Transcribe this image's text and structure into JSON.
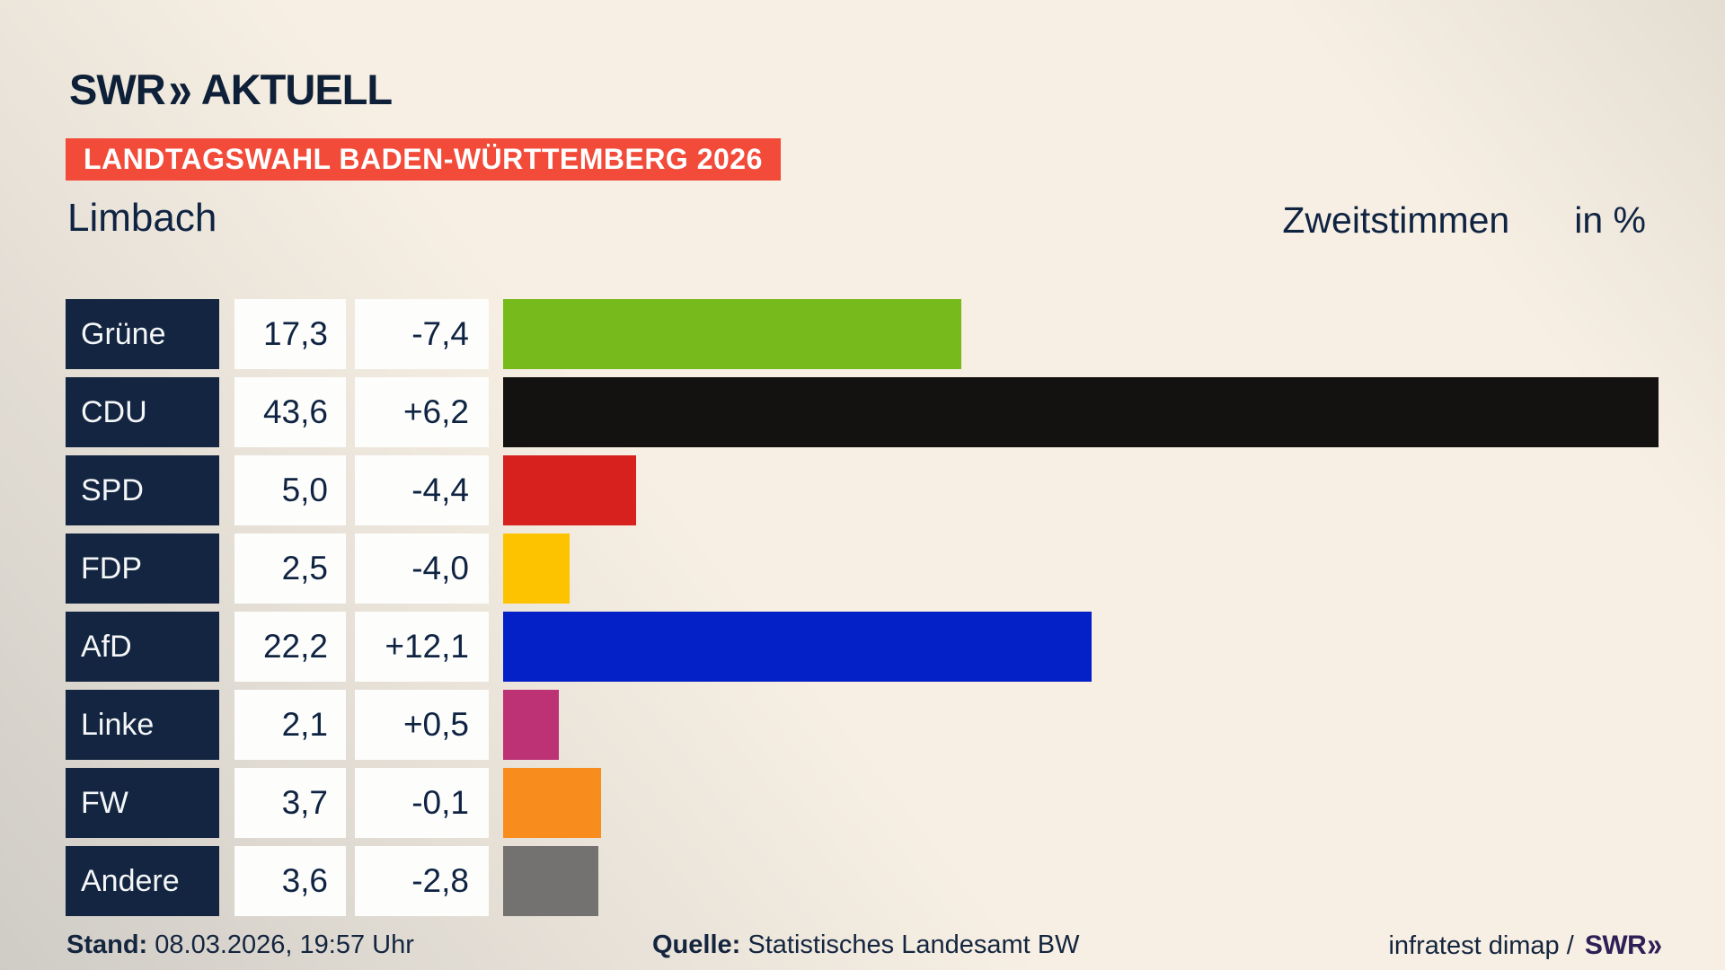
{
  "header": {
    "logo": {
      "brand": "SWR",
      "chevrons": "»",
      "suffix": "AKTUELL"
    },
    "banner": "LANDTAGSWAHL BADEN-WÜRTTEMBERG 2026",
    "region": "Limbach",
    "measure": "Zweitstimmen",
    "unit": "in %"
  },
  "chart_data": {
    "type": "bar",
    "orientation": "horizontal",
    "title": "Landtagswahl Baden-Württemberg 2026 — Limbach — Zweitstimmen in %",
    "categories": [
      "Grüne",
      "CDU",
      "SPD",
      "FDP",
      "AfD",
      "Linke",
      "FW",
      "Andere"
    ],
    "values": [
      17.3,
      43.6,
      5.0,
      2.5,
      22.2,
      2.1,
      3.7,
      3.6
    ],
    "changes": [
      -7.4,
      6.2,
      -4.4,
      -4.0,
      12.1,
      0.5,
      -0.1,
      -2.8
    ],
    "value_labels": [
      "17,3",
      "43,6",
      "5,0",
      "2,5",
      "22,2",
      "2,1",
      "3,7",
      "3,6"
    ],
    "change_labels": [
      "-7,4",
      "+6,2",
      "-4,4",
      "-4,0",
      "+12,1",
      "+0,5",
      "-0,1",
      "-2,8"
    ],
    "bar_colors": [
      "#77ba1b",
      "#141210",
      "#d6211e",
      "#fdc300",
      "#0421c7",
      "#bd3175",
      "#f88d1d",
      "#747270"
    ],
    "xlim": [
      0,
      46
    ],
    "unit": "%",
    "legend": "none",
    "grid": false,
    "pixels_per_percent": 29.5
  },
  "rows": [
    {
      "party": "Grüne",
      "value": "17,3",
      "change": "-7,4",
      "percent": 17.3,
      "color": "#77ba1b"
    },
    {
      "party": "CDU",
      "value": "43,6",
      "change": "+6,2",
      "percent": 43.6,
      "color": "#141210"
    },
    {
      "party": "SPD",
      "value": "5,0",
      "change": "-4,4",
      "percent": 5.0,
      "color": "#d6211e"
    },
    {
      "party": "FDP",
      "value": "2,5",
      "change": "-4,0",
      "percent": 2.5,
      "color": "#fdc300"
    },
    {
      "party": "AfD",
      "value": "22,2",
      "change": "+12,1",
      "percent": 22.2,
      "color": "#0421c7"
    },
    {
      "party": "Linke",
      "value": "2,1",
      "change": "+0,5",
      "percent": 2.1,
      "color": "#bd3175"
    },
    {
      "party": "FW",
      "value": "3,7",
      "change": "-0,1",
      "percent": 3.7,
      "color": "#f88d1d"
    },
    {
      "party": "Andere",
      "value": "3,6",
      "change": "-2,8",
      "percent": 3.6,
      "color": "#747270"
    }
  ],
  "footer": {
    "stand_label": "Stand:",
    "stand_value": "08.03.2026, 19:57 Uhr",
    "source_label": "Quelle:",
    "source_value": "Statistisches Landesamt BW",
    "credit": "infratest dimap /",
    "credit_brand": "SWR",
    "credit_chevrons": "»"
  },
  "colors": {
    "background": "#f7efe3",
    "background_shade": "#cfccc6",
    "banner": "#f24b3a",
    "navy_box": "#132540",
    "navy_text": "#0f2342",
    "white_box": "#fdfdfc",
    "credit_brand": "#2c2057"
  }
}
